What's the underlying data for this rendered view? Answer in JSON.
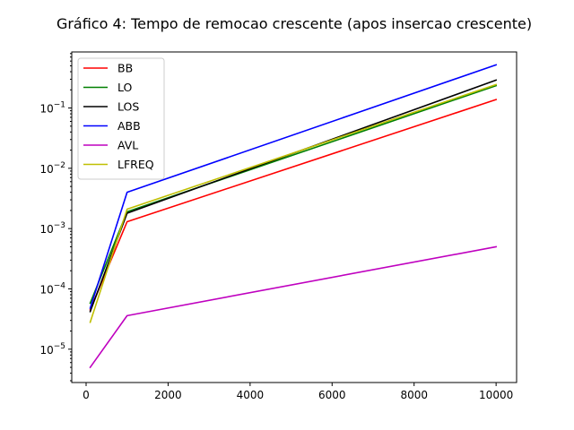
{
  "chart_data": {
    "type": "line",
    "title": "Gráfico 4: Tempo de remocao crescente (apos insercao crescente)",
    "xlabel": "",
    "ylabel": "",
    "yscale": "log",
    "xlim": [
      -350,
      10500
    ],
    "ylim": [
      2.8e-06,
      0.85
    ],
    "grid": false,
    "legend_position": "upper-left",
    "x": [
      100,
      1000,
      10000
    ],
    "x_ticks": [
      0,
      2000,
      4000,
      6000,
      8000,
      10000
    ],
    "x_tick_labels": [
      "0",
      "2000",
      "4000",
      "6000",
      "8000",
      "10000"
    ],
    "y_ticks": [
      1e-05,
      0.0001,
      0.001,
      0.01,
      0.1
    ],
    "y_tick_labels": [
      {
        "base": "10",
        "exp": "−5"
      },
      {
        "base": "10",
        "exp": "−4"
      },
      {
        "base": "10",
        "exp": "−3"
      },
      {
        "base": "10",
        "exp": "−2"
      },
      {
        "base": "10",
        "exp": "−1"
      }
    ],
    "series": [
      {
        "name": "BB",
        "color": "#ff0000",
        "values": [
          4.5e-05,
          0.0013,
          0.138
        ]
      },
      {
        "name": "LO",
        "color": "#008000",
        "values": [
          5.8e-05,
          0.0019,
          0.235
        ]
      },
      {
        "name": "LOS",
        "color": "#000000",
        "values": [
          4.2e-05,
          0.0018,
          0.29
        ]
      },
      {
        "name": "ABB",
        "color": "#0000ff",
        "values": [
          4.8e-05,
          0.004,
          0.52
        ]
      },
      {
        "name": "AVL",
        "color": "#bf00bf",
        "values": [
          5e-06,
          3.6e-05,
          0.0005
        ]
      },
      {
        "name": "LFREQ",
        "color": "#bfbf00",
        "values": [
          2.8e-05,
          0.0021,
          0.245
        ]
      }
    ]
  }
}
